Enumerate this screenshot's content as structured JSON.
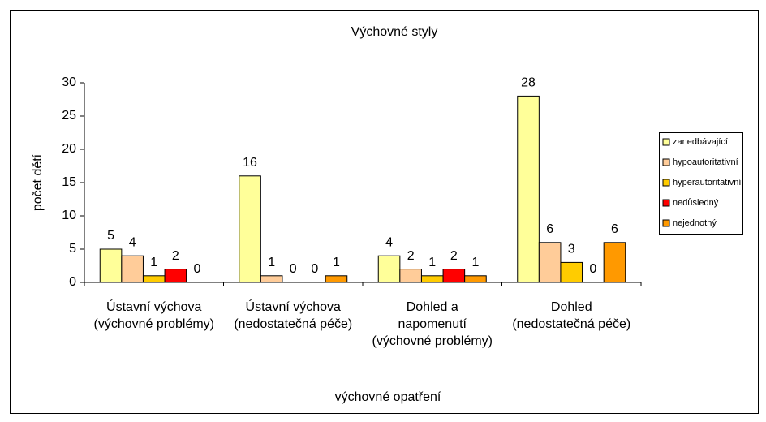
{
  "chart_data": {
    "type": "bar",
    "title": "Výchovné styly",
    "xlabel": "výchovné opatření",
    "ylabel": "počet dětí",
    "categories": [
      "Ústavní výchova (výchovné problémy)",
      "Ústavní výchova (nedostatečná péče)",
      "Dohled a napomenutí (výchovné problémy)",
      "Dohled (nedostatečná péče)"
    ],
    "series": [
      {
        "name": "zanedbávající",
        "color": "#ffff99",
        "values": [
          5,
          16,
          4,
          28
        ]
      },
      {
        "name": "hypoautoritativní",
        "color": "#ffcc99",
        "values": [
          4,
          1,
          2,
          6
        ]
      },
      {
        "name": "hyperautoritativní",
        "color": "#ffcc00",
        "values": [
          1,
          0,
          1,
          3
        ]
      },
      {
        "name": "nedůsledný",
        "color": "#ff0000",
        "values": [
          2,
          0,
          2,
          0
        ]
      },
      {
        "name": "nejednotný",
        "color": "#ff9900",
        "values": [
          0,
          1,
          1,
          6
        ]
      }
    ],
    "ylim": [
      0,
      30
    ],
    "yticks": [
      0,
      5,
      10,
      15,
      20,
      25,
      30
    ],
    "grid": false,
    "legend": "right"
  }
}
